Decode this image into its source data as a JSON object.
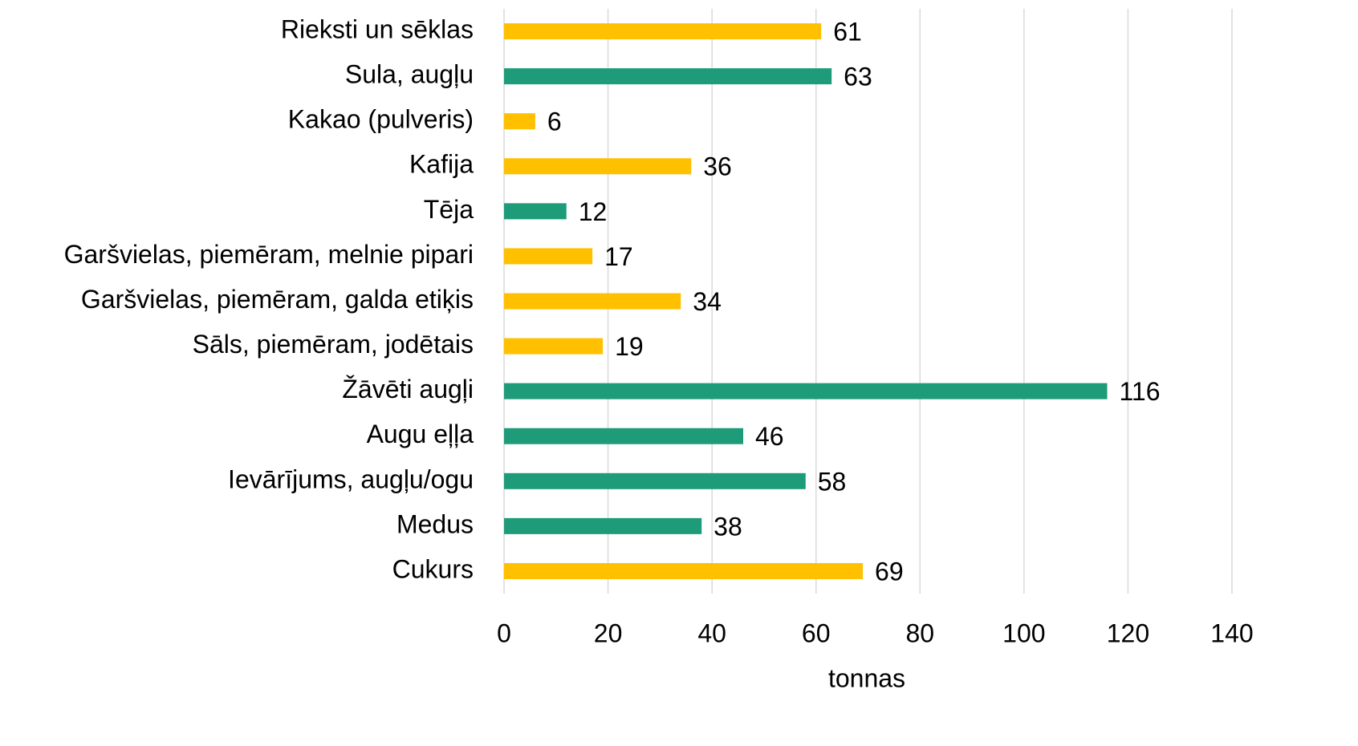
{
  "chart_data": {
    "type": "hbar",
    "categories": [
      "Rieksti un sēklas",
      "Sula, augļu",
      "Kakao (pulveris)",
      "Kafija",
      "Tēja",
      "Garšvielas, piemēram, melnie pipari",
      "Garšvielas, piemēram, galda etiķis",
      "Sāls, piemēram, jodētais",
      "Žāvēti augļi",
      "Augu eļļa",
      "Ievārījums, augļu/ogu",
      "Medus",
      "Cukurs"
    ],
    "values": [
      61,
      63,
      6,
      36,
      12,
      17,
      34,
      19,
      116,
      46,
      58,
      38,
      69
    ],
    "colors": [
      "#ffc000",
      "#1e9b78",
      "#ffc000",
      "#ffc000",
      "#1e9b78",
      "#ffc000",
      "#ffc000",
      "#ffc000",
      "#1e9b78",
      "#1e9b78",
      "#1e9b78",
      "#1e9b78",
      "#ffc000"
    ],
    "xlabel": "tonnas",
    "xlim": [
      0,
      140
    ],
    "xticks": [
      0,
      20,
      40,
      60,
      80,
      100,
      120,
      140
    ],
    "grid": true
  }
}
